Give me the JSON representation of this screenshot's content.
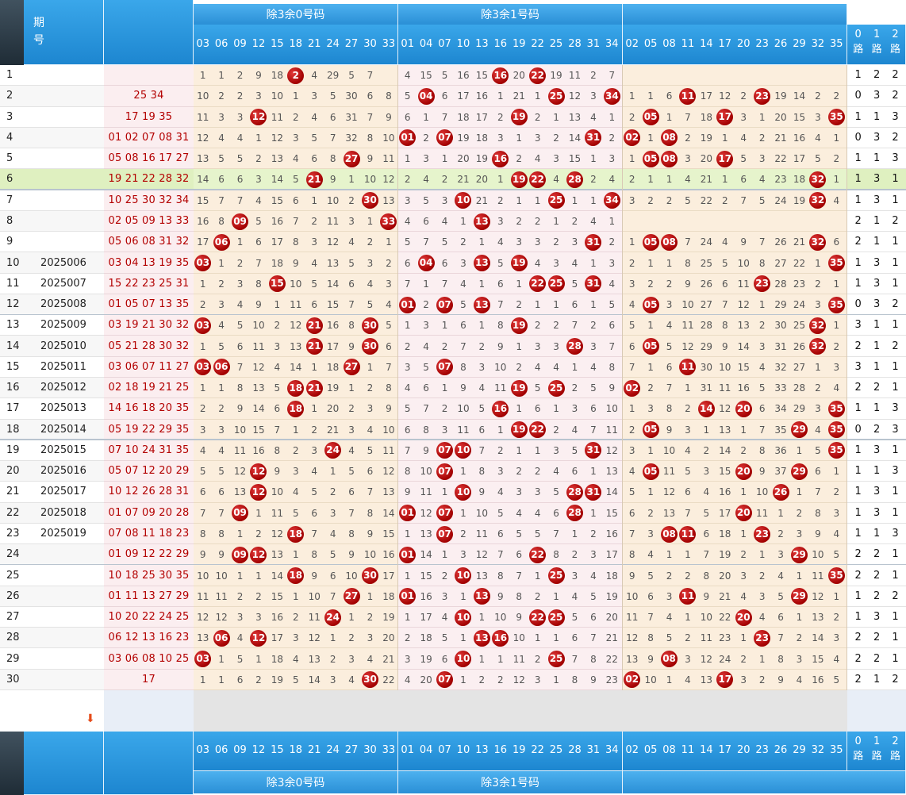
{
  "header": {
    "period_label": "期号",
    "group0_label": "除3余0号码",
    "group1_label": "除3余1号码",
    "group0_numbers": [
      "03",
      "06",
      "09",
      "12",
      "15",
      "18",
      "21",
      "24",
      "27",
      "30",
      "33"
    ],
    "group1_numbers": [
      "01",
      "04",
      "07",
      "10",
      "13",
      "16",
      "19",
      "22",
      "25",
      "28",
      "31",
      "34"
    ],
    "group2_numbers": [
      "02",
      "05",
      "08",
      "11",
      "14",
      "17",
      "20",
      "23",
      "26",
      "29",
      "32",
      "35"
    ],
    "route_labels": [
      "0路",
      "1路",
      "2路"
    ]
  },
  "rows": [
    {
      "idx": "1",
      "period": "",
      "win": "",
      "g0": "1 1 2 9 18 2 4 29 5 7",
      "g0b": [
        5
      ],
      "g1": "4 15 5 16 15 16 20 22 19 11 2 7",
      "g1b": [
        5,
        7
      ],
      "g2": "",
      "g2b": [],
      "r": [
        "1",
        "2",
        "2"
      ]
    },
    {
      "idx": "2",
      "period": "",
      "win": "25 34",
      "g0": "10 2 2 3 10 1 3 5 30 6 8",
      "g0b": [],
      "g1": "5 04 6 17 16 1 21 1 25 12 3 34",
      "g1b": [
        1,
        8,
        11
      ],
      "g2": "1 1 6 11 17 12 2 23 19 14 2 2",
      "g2b": [
        3,
        7
      ],
      "r": [
        "0",
        "3",
        "2"
      ]
    },
    {
      "idx": "3",
      "period": "",
      "win": "17 19 35",
      "g0": "11 3 3 12 11 2 4 6 31 7 9",
      "g0b": [
        3
      ],
      "g1": "6 1 7 18 17 2 19 2 1 13 4 1",
      "g1b": [
        6
      ],
      "g2": "2 05 1 7 18 17 3 1 20 15 3 35",
      "g2b": [
        1,
        5,
        11
      ],
      "r": [
        "1",
        "1",
        "3"
      ]
    },
    {
      "idx": "4",
      "period": "",
      "win": "01 02 07 08 31",
      "g0": "12 4 4 1 12 3 5 7 32 8 10",
      "g0b": [],
      "g1": "01 2 07 19 18 3 1 3 2 14 31 2",
      "g1b": [
        0,
        2,
        10
      ],
      "g2": "02 1 08 2 19 1 4 2 21 16 4 1",
      "g2b": [
        0,
        2
      ],
      "r": [
        "0",
        "3",
        "2"
      ]
    },
    {
      "idx": "5",
      "period": "",
      "win": "05 08 16 17 27",
      "g0": "13 5 5 2 13 4 6 8 27 9 11",
      "g0b": [
        8
      ],
      "g1": "1 3 1 20 19 16 2 4 3 15 1 3",
      "g1b": [
        5
      ],
      "g2": "1 05 08 3 20 17 5 3 22 17 5 2",
      "g2b": [
        1,
        2,
        5
      ],
      "r": [
        "1",
        "1",
        "3"
      ]
    },
    {
      "idx": "6",
      "period": "",
      "win": "19 21 22 28 32",
      "g0": "14 6 6 3 14 5 21 9 1 10 12",
      "g0b": [
        6
      ],
      "g1": "2 4 2 21 20 1 19 22 4 28 2 4",
      "g1b": [
        6,
        7,
        9
      ],
      "g2": "2 1 1 4 21 1 6 4 23 18 32 1",
      "g2b": [
        10
      ],
      "r": [
        "1",
        "3",
        "1"
      ]
    },
    {
      "idx": "7",
      "period": "",
      "win": "10 25 30 32 34",
      "g0": "15 7 7 4 15 6 1 10 2 30 13",
      "g0b": [
        9
      ],
      "g1": "3 5 3 10 21 2 1 1 25 1 1 34",
      "g1b": [
        3,
        8,
        11
      ],
      "g2": "3 2 2 5 22 2 7 5 24 19 32 4",
      "g2b": [
        10
      ],
      "r": [
        "1",
        "3",
        "1"
      ]
    },
    {
      "idx": "8",
      "period": "",
      "win": "02 05 09 13 33",
      "g0": "16 8 09 5 16 7 2 11 3 1 33",
      "g0b": [
        2,
        10
      ],
      "g1": "4 6 4 1 13 3 2 2 1 2 4 1",
      "g1b": [
        4
      ],
      "g2": "",
      "g2b": [],
      "r": [
        "2",
        "1",
        "2"
      ]
    },
    {
      "idx": "9",
      "period": "",
      "win": "05 06 08 31 32",
      "g0": "17 06 1 6 17 8 3 12 4 2 1",
      "g0b": [
        1
      ],
      "g1": "5 7 5 2 1 4 3 3 2 3 31 2",
      "g1b": [
        10
      ],
      "g2": "1 05 08 7 24 4 9 7 26 21 32 6",
      "g2b": [
        1,
        2,
        10
      ],
      "r": [
        "2",
        "1",
        "1"
      ]
    },
    {
      "idx": "10",
      "period": "2025006",
      "win": "03 04 13 19 35",
      "g0": "03 1 2 7 18 9 4 13 5 3 2",
      "g0b": [
        0
      ],
      "g1": "6 04 6 3 13 5 19 4 3 4 1 3",
      "g1b": [
        1,
        4,
        6
      ],
      "g2": "2 1 1 8 25 5 10 8 27 22 1 35",
      "g2b": [
        11
      ],
      "r": [
        "1",
        "3",
        "1"
      ]
    },
    {
      "idx": "11",
      "period": "2025007",
      "win": "15 22 23 25 31",
      "g0": "1 2 3 8 15 10 5 14 6 4 3",
      "g0b": [
        4
      ],
      "g1": "7 1 7 4 1 6 1 22 25 5 31 4",
      "g1b": [
        7,
        8,
        10
      ],
      "g2": "3 2 2 9 26 6 11 23 28 23 2 1",
      "g2b": [
        7
      ],
      "r": [
        "1",
        "3",
        "1"
      ]
    },
    {
      "idx": "12",
      "period": "2025008",
      "win": "01 05 07 13 35",
      "g0": "2 3 4 9 1 11 6 15 7 5 4",
      "g0b": [],
      "g1": "01 2 07 5 13 7 2 1 1 6 1 5",
      "g1b": [
        0,
        2,
        4
      ],
      "g2": "4 05 3 10 27 7 12 1 29 24 3 35",
      "g2b": [
        1,
        11
      ],
      "r": [
        "0",
        "3",
        "2"
      ]
    },
    {
      "idx": "13",
      "period": "2025009",
      "win": "03 19 21 30 32",
      "g0": "03 4 5 10 2 12 21 16 8 30 5",
      "g0b": [
        0,
        6,
        9
      ],
      "g1": "1 3 1 6 1 8 19 2 2 7 2 6",
      "g1b": [
        6
      ],
      "g2": "5 1 4 11 28 8 13 2 30 25 32 1",
      "g2b": [
        10
      ],
      "r": [
        "3",
        "1",
        "1"
      ]
    },
    {
      "idx": "14",
      "period": "2025010",
      "win": "05 21 28 30 32",
      "g0": "1 5 6 11 3 13 21 17 9 30 6",
      "g0b": [
        6,
        9
      ],
      "g1": "2 4 2 7 2 9 1 3 3 28 3 7",
      "g1b": [
        9
      ],
      "g2": "6 05 5 12 29 9 14 3 31 26 32 2",
      "g2b": [
        1,
        10
      ],
      "r": [
        "2",
        "1",
        "2"
      ]
    },
    {
      "idx": "15",
      "period": "2025011",
      "win": "03 06 07 11 27",
      "g0": "03 06 7 12 4 14 1 18 27 1 7",
      "g0b": [
        0,
        1,
        8
      ],
      "g1": "3 5 07 8 3 10 2 4 4 1 4 8",
      "g1b": [
        2
      ],
      "g2": "7 1 6 11 30 10 15 4 32 27 1 3",
      "g2b": [
        3
      ],
      "r": [
        "3",
        "1",
        "1"
      ]
    },
    {
      "idx": "16",
      "period": "2025012",
      "win": "02 18 19 21 25",
      "g0": "1 1 8 13 5 18 21 19 1 2 8",
      "g0b": [
        5,
        6
      ],
      "g1": "4 6 1 9 4 11 19 5 25 2 5 9",
      "g1b": [
        6,
        8
      ],
      "g2": "02 2 7 1 31 11 16 5 33 28 2 4",
      "g2b": [
        0
      ],
      "r": [
        "2",
        "2",
        "1"
      ]
    },
    {
      "idx": "17",
      "period": "2025013",
      "win": "14 16 18 20 35",
      "g0": "2 2 9 14 6 18 1 20 2 3 9",
      "g0b": [
        5
      ],
      "g1": "5 7 2 10 5 16 1 6 1 3 6 10",
      "g1b": [
        5
      ],
      "g2": "1 3 8 2 14 12 20 6 34 29 3 35",
      "g2b": [
        4,
        6,
        11
      ],
      "r": [
        "1",
        "1",
        "3"
      ]
    },
    {
      "idx": "18",
      "period": "2025014",
      "win": "05 19 22 29 35",
      "g0": "3 3 10 15 7 1 2 21 3 4 10",
      "g0b": [],
      "g1": "6 8 3 11 6 1 19 22 2 4 7 11",
      "g1b": [
        6,
        7
      ],
      "g2": "2 05 9 3 1 13 1 7 35 29 4 35",
      "g2b": [
        1,
        9,
        11
      ],
      "r": [
        "0",
        "2",
        "3"
      ]
    },
    {
      "idx": "19",
      "period": "2025015",
      "win": "07 10 24 31 35",
      "g0": "4 4 11 16 8 2 3 24 4 5 11",
      "g0b": [
        7
      ],
      "g1": "7 9 07 10 7 2 1 1 3 5 31 12",
      "g1b": [
        2,
        3,
        10
      ],
      "g2": "3 1 10 4 2 14 2 8 36 1 5 35",
      "g2b": [
        11
      ],
      "r": [
        "1",
        "3",
        "1"
      ]
    },
    {
      "idx": "20",
      "period": "2025016",
      "win": "05 07 12 20 29",
      "g0": "5 5 12 12 9 3 4 1 5 6 12",
      "g0b": [
        3
      ],
      "g1": "8 10 07 1 8 3 2 2 4 6 1 13",
      "g1b": [
        2
      ],
      "g2": "4 05 11 5 3 15 20 9 37 29 6 1",
      "g2b": [
        1,
        6,
        9
      ],
      "r": [
        "1",
        "1",
        "3"
      ]
    },
    {
      "idx": "21",
      "period": "2025017",
      "win": "10 12 26 28 31",
      "g0": "6 6 13 12 10 4 5 2 6 7 13",
      "g0b": [
        3
      ],
      "g1": "9 11 1 10 9 4 3 3 5 28 31 14",
      "g1b": [
        3,
        9,
        10
      ],
      "g2": "5 1 12 6 4 16 1 10 26 1 7 2",
      "g2b": [
        8
      ],
      "r": [
        "1",
        "3",
        "1"
      ]
    },
    {
      "idx": "22",
      "period": "2025018",
      "win": "01 07 09 20 28",
      "g0": "7 7 09 1 11 5 6 3 7 8 14",
      "g0b": [
        2
      ],
      "g1": "01 12 07 1 10 5 4 4 6 28 1 15",
      "g1b": [
        0,
        2,
        9
      ],
      "g2": "6 2 13 7 5 17 20 11 1 2 8 3",
      "g2b": [
        6
      ],
      "r": [
        "1",
        "3",
        "1"
      ]
    },
    {
      "idx": "23",
      "period": "2025019",
      "win": "07 08 11 18 23",
      "g0": "8 8 1 2 12 18 7 4 8 9 15",
      "g0b": [
        5
      ],
      "g1": "1 13 07 2 11 6 5 5 7 1 2 16",
      "g1b": [
        2
      ],
      "g2": "7 3 08 11 6 18 1 23 2 3 9 4",
      "g2b": [
        2,
        3,
        7
      ],
      "r": [
        "1",
        "1",
        "3"
      ]
    },
    {
      "idx": "24",
      "period": "",
      "win": "01 09 12 22 29",
      "g0": "9 9 09 12 13 1 8 5 9 10 16",
      "g0b": [
        2,
        3
      ],
      "g1": "01 14 1 3 12 7 6 22 8 2 3 17",
      "g1b": [
        0,
        7
      ],
      "g2": "8 4 1 1 7 19 2 1 3 29 10 5",
      "g2b": [
        9
      ],
      "r": [
        "2",
        "2",
        "1"
      ]
    },
    {
      "idx": "25",
      "period": "",
      "win": "10 18 25 30 35",
      "g0": "10 10 1 1 14 18 9 6 10 30 17",
      "g0b": [
        5,
        9
      ],
      "g1": "1 15 2 10 13 8 7 1 25 3 4 18",
      "g1b": [
        3,
        8
      ],
      "g2": "9 5 2 2 8 20 3 2 4 1 11 35",
      "g2b": [
        11
      ],
      "r": [
        "2",
        "2",
        "1"
      ]
    },
    {
      "idx": "26",
      "period": "",
      "win": "01 11 13 27 29",
      "g0": "11 11 2 2 15 1 10 7 27 1 18",
      "g0b": [
        8
      ],
      "g1": "01 16 3 1 13 9 8 2 1 4 5 19",
      "g1b": [
        0,
        4
      ],
      "g2": "10 6 3 11 9 21 4 3 5 29 12 1",
      "g2b": [
        3,
        9
      ],
      "r": [
        "1",
        "2",
        "2"
      ]
    },
    {
      "idx": "27",
      "period": "",
      "win": "10 20 22 24 25",
      "g0": "12 12 3 3 16 2 11 24 1 2 19",
      "g0b": [
        7
      ],
      "g1": "1 17 4 10 1 10 9 22 25 5 6 20",
      "g1b": [
        3,
        7,
        8
      ],
      "g2": "11 7 4 1 10 22 20 4 6 1 13 2",
      "g2b": [
        6
      ],
      "r": [
        "1",
        "3",
        "1"
      ]
    },
    {
      "idx": "28",
      "period": "",
      "win": "06 12 13 16 23",
      "g0": "13 06 4 12 17 3 12 1 2 3 20",
      "g0b": [
        1,
        3
      ],
      "g1": "2 18 5 1 13 16 10 1 1 6 7 21",
      "g1b": [
        4,
        5
      ],
      "g2": "12 8 5 2 11 23 1 23 7 2 14 3",
      "g2b": [
        7
      ],
      "r": [
        "2",
        "2",
        "1"
      ]
    },
    {
      "idx": "29",
      "period": "",
      "win": "03 06 08 10 25",
      "g0": "03 1 5 1 18 4 13 2 3 4 21",
      "g0b": [
        0
      ],
      "g1": "3 19 6 10 1 1 11 2 25 7 8 22",
      "g1b": [
        3,
        8
      ],
      "g2": "13 9 08 3 12 24 2 1 8 3 15 4",
      "g2b": [
        2
      ],
      "r": [
        "2",
        "2",
        "1"
      ]
    },
    {
      "idx": "30",
      "period": "",
      "win": "17",
      "g0": "1 1 6 2 19 5 14 3 4 30 22",
      "g0b": [
        9
      ],
      "g1": "4 20 07 1 2 2 12 3 1 8 9 23",
      "g1b": [
        2
      ],
      "g2": "02 10 1 4 13 17 3 2 9 4 16 5",
      "g2b": [
        0,
        5
      ],
      "r": [
        "2",
        "1",
        "2"
      ]
    }
  ],
  "colors": {
    "header": "#2a8fd6",
    "ball": "#c00000",
    "winning": "#b30000",
    "highlight_row": "#dff0c0"
  }
}
